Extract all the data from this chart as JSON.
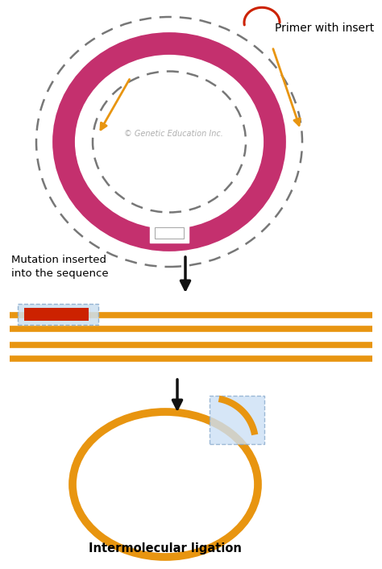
{
  "bg_color": "#ffffff",
  "magenta_color": "#c4306e",
  "orange_color": "#e89510",
  "red_color": "#cc2200",
  "dashed_color": "#777777",
  "arrow_color": "#111111",
  "label_primer": "Primer with insert",
  "label_mutation": "Mutation inserted\ninto the sequence",
  "label_ligation": "Intermolecular ligation",
  "watermark": "© Genetic Education Inc.",
  "fig_w": 4.74,
  "fig_h": 7.06,
  "dpi": 100
}
